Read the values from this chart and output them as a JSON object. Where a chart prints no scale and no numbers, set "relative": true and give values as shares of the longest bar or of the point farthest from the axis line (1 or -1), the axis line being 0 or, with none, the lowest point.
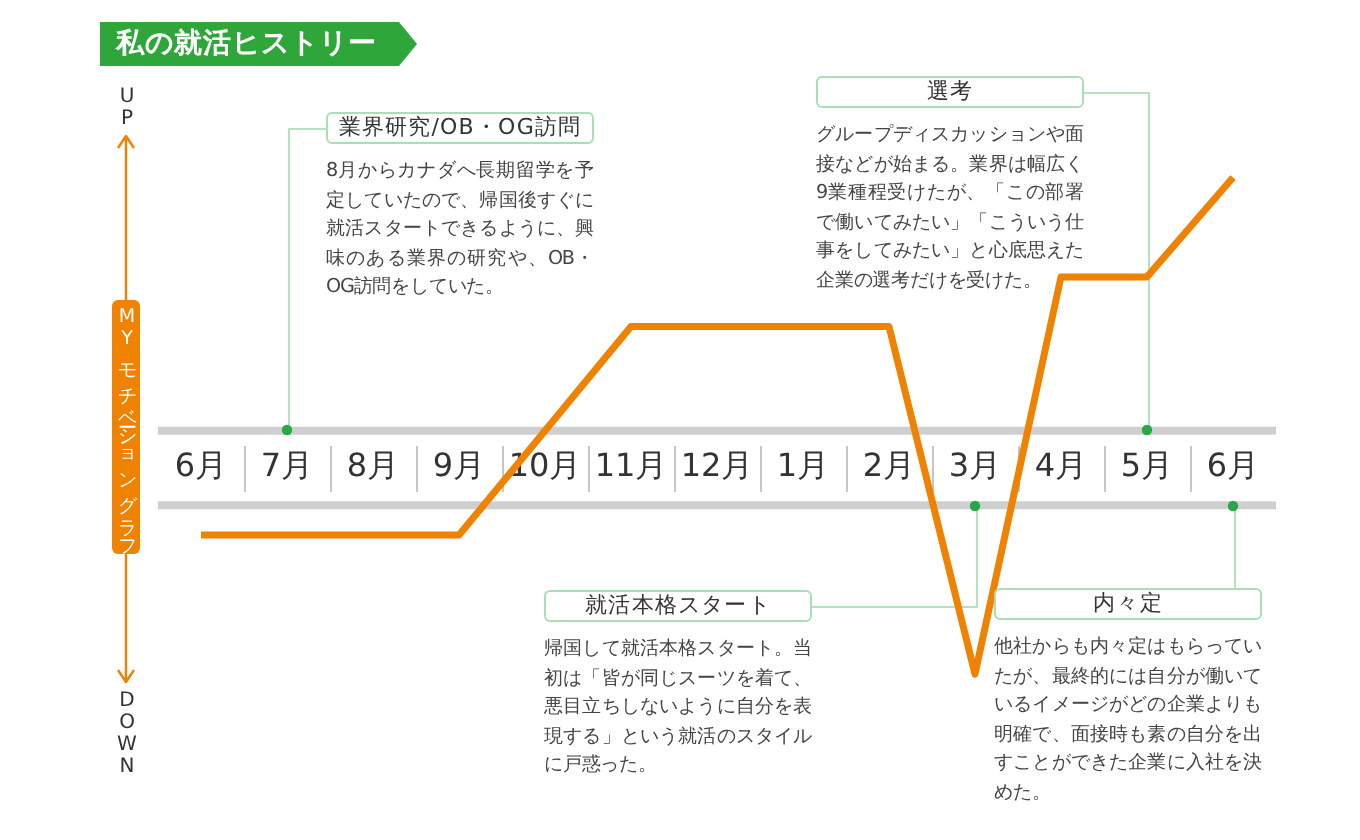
{
  "chart_data": {
    "type": "line",
    "title": "私の就活ヒストリー",
    "ylabel": "MYモチベーショングラフ",
    "categories": [
      "6月",
      "7月",
      "8月",
      "9月",
      "10月",
      "11月",
      "12月",
      "1月",
      "2月",
      "3月",
      "4月",
      "5月",
      "6月"
    ],
    "values": [
      0.28,
      0.28,
      0.28,
      0.28,
      0.49,
      0.7,
      0.7,
      0.7,
      0.7,
      0,
      0.8,
      0.8,
      1
    ],
    "color": "#ef8200",
    "relative": true,
    "marker": "none",
    "ref_lines": [
      {
        "axis": "y",
        "value": 0.49,
        "color": "#cfcfcf"
      },
      {
        "axis": "y",
        "value": 0.34,
        "color": "#cfcfcf"
      }
    ],
    "annotations": [
      "UP",
      "DOWN",
      "業界研究/OB・OG訪問",
      "8月からカナダへ長期留学を予定していたので、帰国後すぐに就活スタートできるように、興味のある業界の研究や、OB・OG訪問をしていた。",
      "選考",
      "グループディスカッションや面接などが始まる。業界は幅広く9業種程受けたが、「この部署で働いてみたい」「こういう仕事をしてみたい」と心底思えた企業の選考だけを受けた。",
      "就活本格スタート",
      "帰国して就活本格スタート。当初は「皆が同じスーツを着て、悪目立ちしないように自分を表現する」という就活のスタイルに戸惑った。",
      "内々定",
      "他社からも内々定はもらっていたが、最終的には自分が働いているイメージがどの企業よりも明確で、面接時も素の自分を出すことができた企業に入社を決めた。"
    ]
  }
}
